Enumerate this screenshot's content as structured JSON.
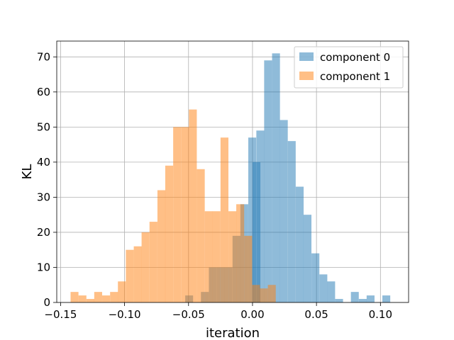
{
  "chart_data": {
    "type": "bar",
    "title": "",
    "xlabel": "iteration",
    "ylabel": "KL",
    "xlim": [
      -0.153,
      0.122
    ],
    "ylim": [
      0,
      74.5
    ],
    "xticks": [
      -0.15,
      -0.1,
      -0.05,
      0.0,
      0.05,
      0.1
    ],
    "xtick_labels": [
      "−0.15",
      "−0.10",
      "−0.05",
      "0.00",
      "0.05",
      "0.10"
    ],
    "yticks": [
      0,
      10,
      20,
      30,
      40,
      50,
      60,
      70
    ],
    "ytick_labels": [
      "0",
      "10",
      "20",
      "30",
      "40",
      "50",
      "60",
      "70"
    ],
    "grid": true,
    "legend": "top-right",
    "series": [
      {
        "name": "component 0",
        "color": "#1f77b4",
        "opacity": 0.5,
        "bin_width": 0.00616,
        "bins": [
          {
            "x0": -0.0526,
            "count": 2
          },
          {
            "x0": -0.0464,
            "count": 0
          },
          {
            "x0": -0.0403,
            "count": 3
          },
          {
            "x0": -0.0341,
            "count": 10
          },
          {
            "x0": -0.0279,
            "count": 10
          },
          {
            "x0": -0.0218,
            "count": 10
          },
          {
            "x0": -0.0156,
            "count": 19
          },
          {
            "x0": -0.0095,
            "count": 28
          },
          {
            "x0": -0.0033,
            "count": 47
          },
          {
            "x0": 0.0,
            "count": 40
          },
          {
            "x0": 0.003,
            "count": 49
          },
          {
            "x0": 0.0091,
            "count": 69
          },
          {
            "x0": 0.0153,
            "count": 71
          },
          {
            "x0": 0.0214,
            "count": 52
          },
          {
            "x0": 0.0276,
            "count": 46
          },
          {
            "x0": 0.0338,
            "count": 33
          },
          {
            "x0": 0.0399,
            "count": 25
          },
          {
            "x0": 0.0461,
            "count": 14
          },
          {
            "x0": 0.0523,
            "count": 8
          },
          {
            "x0": 0.0584,
            "count": 6
          },
          {
            "x0": 0.0646,
            "count": 1
          },
          {
            "x0": 0.0707,
            "count": 0
          },
          {
            "x0": 0.0769,
            "count": 3
          },
          {
            "x0": 0.0831,
            "count": 1
          },
          {
            "x0": 0.0892,
            "count": 2
          },
          {
            "x0": 0.0954,
            "count": 0
          },
          {
            "x0": 0.1015,
            "count": 2
          }
        ]
      },
      {
        "name": "component 1",
        "color": "#ff7f0e",
        "opacity": 0.5,
        "bin_width": 0.00617,
        "bins": [
          {
            "x0": -0.1422,
            "count": 3
          },
          {
            "x0": -0.136,
            "count": 2
          },
          {
            "x0": -0.1298,
            "count": 1
          },
          {
            "x0": -0.1237,
            "count": 3
          },
          {
            "x0": -0.1175,
            "count": 2
          },
          {
            "x0": -0.1113,
            "count": 3
          },
          {
            "x0": -0.1052,
            "count": 6
          },
          {
            "x0": -0.099,
            "count": 15
          },
          {
            "x0": -0.0928,
            "count": 16
          },
          {
            "x0": -0.0867,
            "count": 20
          },
          {
            "x0": -0.0805,
            "count": 23
          },
          {
            "x0": -0.0743,
            "count": 32
          },
          {
            "x0": -0.0682,
            "count": 39
          },
          {
            "x0": -0.062,
            "count": 50
          },
          {
            "x0": -0.0558,
            "count": 50
          },
          {
            "x0": -0.0497,
            "count": 55
          },
          {
            "x0": -0.0435,
            "count": 38
          },
          {
            "x0": -0.0373,
            "count": 26
          },
          {
            "x0": -0.0312,
            "count": 26
          },
          {
            "x0": -0.025,
            "count": 47
          },
          {
            "x0": -0.0188,
            "count": 26
          },
          {
            "x0": -0.0127,
            "count": 28
          },
          {
            "x0": -0.0065,
            "count": 19
          },
          {
            "x0": -0.0003,
            "count": 5
          },
          {
            "x0": 0.0058,
            "count": 4
          },
          {
            "x0": 0.012,
            "count": 5
          }
        ]
      }
    ]
  }
}
